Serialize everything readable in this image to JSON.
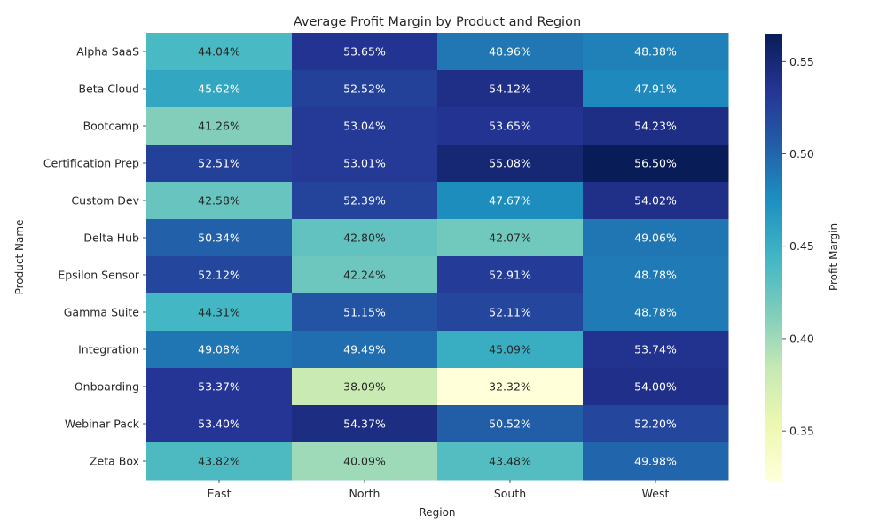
{
  "chart_data": {
    "type": "heatmap",
    "title": "Average Profit Margin by Product and Region",
    "xlabel": "Region",
    "ylabel": "Product Name",
    "x": [
      "East",
      "North",
      "South",
      "West"
    ],
    "y": [
      "Alpha SaaS",
      "Beta Cloud",
      "Bootcamp",
      "Certification Prep",
      "Custom Dev",
      "Delta Hub",
      "Epsilon Sensor",
      "Gamma Suite",
      "Integration",
      "Onboarding",
      "Webinar Pack",
      "Zeta Box"
    ],
    "values": [
      [
        0.4404,
        0.5365,
        0.4896,
        0.4838
      ],
      [
        0.4562,
        0.5252,
        0.5412,
        0.4791
      ],
      [
        0.4126,
        0.5304,
        0.5365,
        0.5423
      ],
      [
        0.5251,
        0.5301,
        0.5508,
        0.565
      ],
      [
        0.4258,
        0.5239,
        0.4767,
        0.5402
      ],
      [
        0.5034,
        0.428,
        0.4207,
        0.4906
      ],
      [
        0.5212,
        0.4224,
        0.5291,
        0.4878
      ],
      [
        0.4431,
        0.5115,
        0.5211,
        0.4878
      ],
      [
        0.4908,
        0.4949,
        0.4509,
        0.5374
      ],
      [
        0.5337,
        0.3809,
        0.3232,
        0.54
      ],
      [
        0.534,
        0.5437,
        0.5052,
        0.522
      ],
      [
        0.4382,
        0.4009,
        0.4348,
        0.4998
      ]
    ],
    "cell_labels": [
      [
        "44.04%",
        "53.65%",
        "48.96%",
        "48.38%"
      ],
      [
        "45.62%",
        "52.52%",
        "54.12%",
        "47.91%"
      ],
      [
        "41.26%",
        "53.04%",
        "53.65%",
        "54.23%"
      ],
      [
        "52.51%",
        "53.01%",
        "55.08%",
        "56.50%"
      ],
      [
        "42.58%",
        "52.39%",
        "47.67%",
        "54.02%"
      ],
      [
        "50.34%",
        "42.80%",
        "42.07%",
        "49.06%"
      ],
      [
        "52.12%",
        "42.24%",
        "52.91%",
        "48.78%"
      ],
      [
        "44.31%",
        "51.15%",
        "52.11%",
        "48.78%"
      ],
      [
        "49.08%",
        "49.49%",
        "45.09%",
        "53.74%"
      ],
      [
        "53.37%",
        "38.09%",
        "32.32%",
        "54.00%"
      ],
      [
        "53.40%",
        "54.37%",
        "50.52%",
        "52.20%"
      ],
      [
        "43.82%",
        "40.09%",
        "43.48%",
        "49.98%"
      ]
    ],
    "colorbar": {
      "label": "Profit Margin",
      "range": [
        0.3232,
        0.565
      ],
      "ticks": [
        "0.35",
        "0.40",
        "0.45",
        "0.50",
        "0.55"
      ],
      "tick_values": [
        0.35,
        0.4,
        0.45,
        0.5,
        0.55
      ],
      "colormap": "YlGnBu",
      "stops": [
        "#ffffd9",
        "#edf8b1",
        "#c7e9b4",
        "#7fcdbb",
        "#41b6c4",
        "#1d91c0",
        "#225ea8",
        "#253494",
        "#081d58"
      ]
    }
  }
}
